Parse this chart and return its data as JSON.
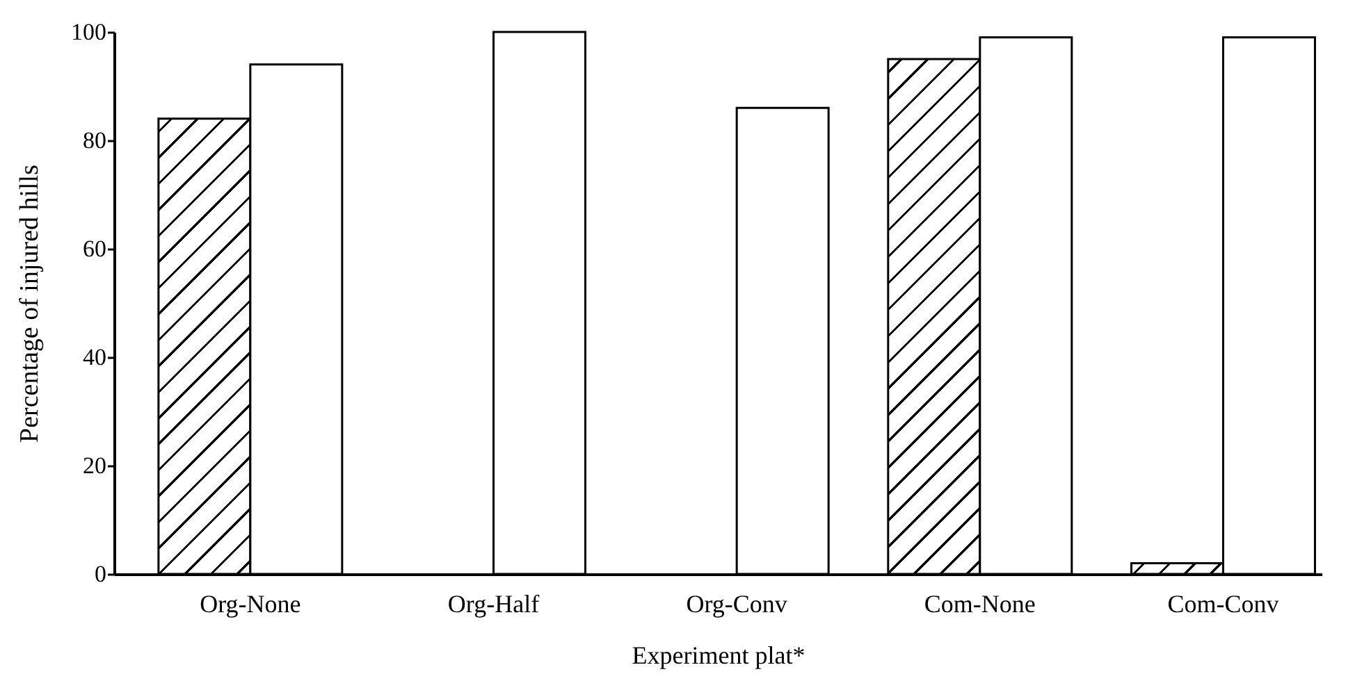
{
  "chart_data": {
    "type": "bar",
    "xlabel": "Experiment plat*",
    "ylabel": "Percentage of injured hills",
    "categories": [
      "Org-None",
      "Org-Half",
      "Org-Conv",
      "Com-None",
      "Com-Conv"
    ],
    "series": [
      {
        "color": "#000000",
        "values": [
          84,
          null,
          null,
          95,
          2
        ]
      },
      {
        "color": "#ffffff",
        "values": [
          94,
          100,
          86,
          99,
          99
        ]
      }
    ],
    "ylim": [
      0,
      100
    ],
    "yticks": [
      0,
      20,
      40,
      60,
      80,
      100
    ]
  }
}
